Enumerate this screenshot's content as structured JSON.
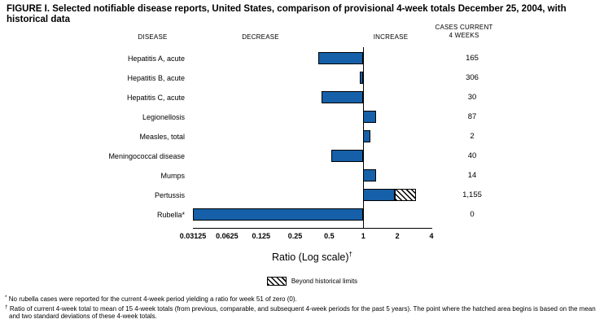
{
  "title": "FIGURE I. Selected notifiable disease reports, United States, comparison of provisional 4-week totals December 25, 2004, with historical data",
  "headers": {
    "disease": "DISEASE",
    "decrease": "DECREASE",
    "increase": "INCREASE",
    "cases_line1": "CASES CURRENT",
    "cases_line2": "4 WEEKS"
  },
  "axis": {
    "label": "Ratio (Log scale)",
    "label_sup": "†"
  },
  "legend": {
    "beyond_label": "Beyond historical limits"
  },
  "footnotes": [
    {
      "marker": "*",
      "text": "No rubella cases were reported for the current 4-week period yielding a ratio for week 51 of zero (0)."
    },
    {
      "marker": "†",
      "text": "Ratio of current 4-week total to mean of 15 4-week totals (from previous, comparable, and subsequent 4-week periods for the past 5 years). The point where the hatched area begins is based on the mean and two standard deviations of these 4-week totals."
    }
  ],
  "colors": {
    "bar_fill": "#1560a8",
    "bar_border": "#000000"
  },
  "chart_data": {
    "type": "bar",
    "orientation": "horizontal",
    "x_scale": "log2",
    "x_min": 0.03125,
    "x_max": 4,
    "baseline": 1,
    "ticks": [
      "0.03125",
      "0.0625",
      "0.125",
      "0.25",
      "0.5",
      "1",
      "2",
      "4"
    ],
    "xlabel": "Ratio (Log scale)",
    "rows": [
      {
        "disease": "Hepatitis A, acute",
        "cases": "165",
        "ratio": 0.4
      },
      {
        "disease": "Hepatitis B, acute",
        "cases": "306",
        "ratio": 0.93
      },
      {
        "disease": "Hepatitis C, acute",
        "cases": "30",
        "ratio": 0.43
      },
      {
        "disease": "Legionellosis",
        "cases": "87",
        "ratio": 1.3
      },
      {
        "disease": "Measles, total",
        "cases": "2",
        "ratio": 1.15
      },
      {
        "disease": "Meningococcal disease",
        "cases": "40",
        "ratio": 0.52
      },
      {
        "disease": "Mumps",
        "cases": "14",
        "ratio": 1.3
      },
      {
        "disease": "Pertussis",
        "cases": "1,155",
        "ratio": 2.9,
        "beyond_historical_limits_start": 1.9
      },
      {
        "disease": "Rubella*",
        "cases": "0",
        "ratio": 0.03125
      }
    ]
  }
}
